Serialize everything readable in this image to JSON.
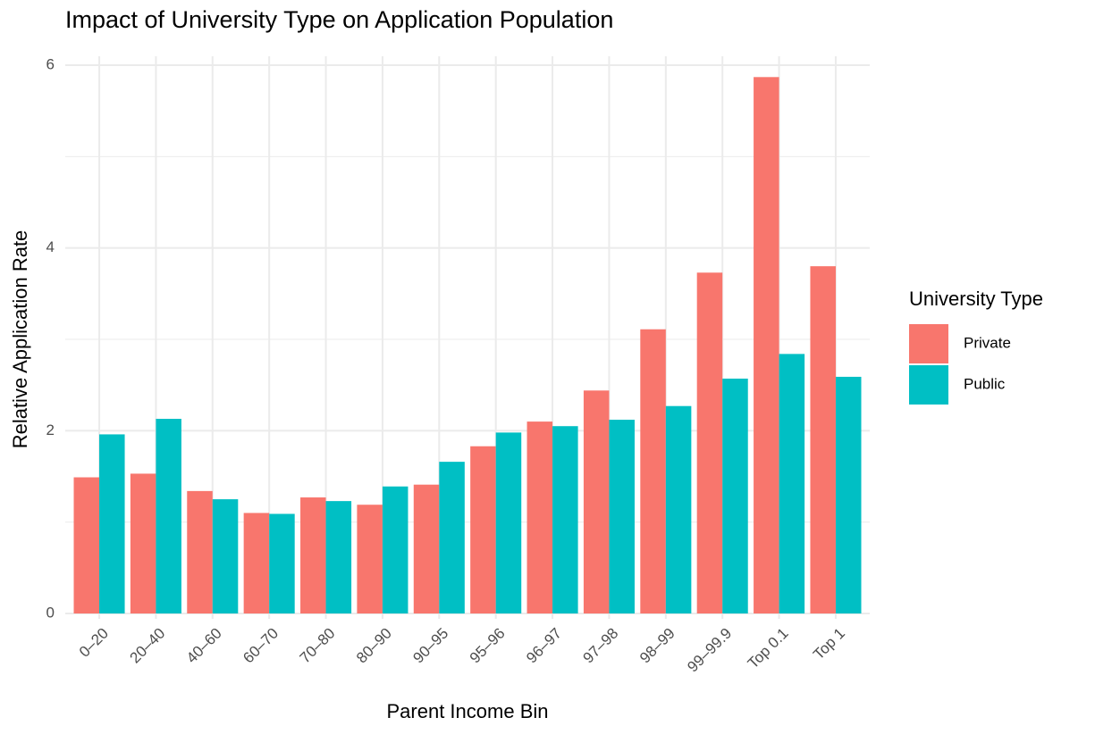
{
  "chart_data": {
    "type": "bar",
    "title": "Impact of University Type on Application Population",
    "x_label": "Parent Income Bin",
    "y_label": "Relative Application Rate",
    "legend_title": "University Type",
    "categories": [
      "0–20",
      "20–40",
      "40–60",
      "60–70",
      "70–80",
      "80–90",
      "90–95",
      "95–96",
      "96–97",
      "97–98",
      "98–99",
      "99–99.9",
      "Top 0.1",
      "Top 1"
    ],
    "series": [
      {
        "name": "Private",
        "color": "#f8766d",
        "values": [
          1.49,
          1.53,
          1.34,
          1.1,
          1.27,
          1.19,
          1.41,
          1.83,
          2.1,
          2.44,
          3.11,
          3.73,
          5.87,
          3.8
        ]
      },
      {
        "name": "Public",
        "color": "#00bfc4",
        "values": [
          1.96,
          2.13,
          1.25,
          1.09,
          1.23,
          1.39,
          1.66,
          1.98,
          2.05,
          2.12,
          2.27,
          2.57,
          2.84,
          2.59
        ]
      }
    ],
    "ylim": [
      0,
      6
    ],
    "yticks": [
      0,
      2,
      4,
      6
    ],
    "minor_yticks": [
      1,
      3,
      5
    ],
    "grid": true,
    "legend": "right"
  }
}
